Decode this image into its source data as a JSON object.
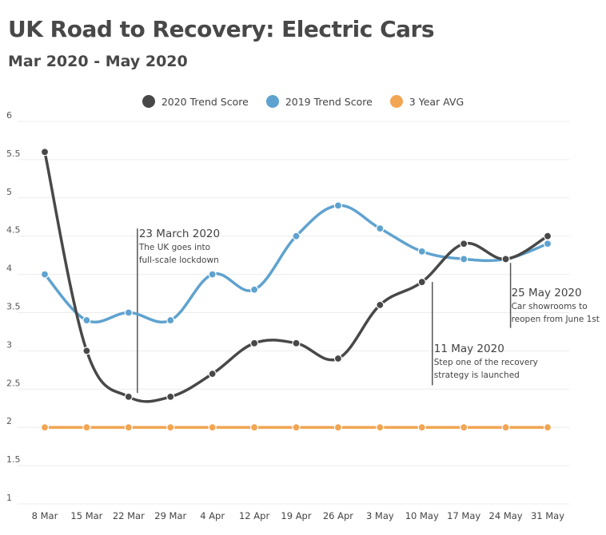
{
  "chart_data": {
    "type": "line",
    "title": "UK Road to Recovery: Electric Cars",
    "subtitle": "Mar 2020 - May 2020",
    "categories": [
      "8 Mar",
      "15 Mar",
      "22 Mar",
      "29 Mar",
      "4 Apr",
      "12 Apr",
      "19 Apr",
      "26 Apr",
      "3 May",
      "10 May",
      "17 May",
      "24 May",
      "31 May"
    ],
    "series": [
      {
        "name": "2020 Trend Score",
        "color": "#484848",
        "values": [
          5.6,
          3.0,
          2.4,
          2.4,
          2.7,
          3.1,
          3.1,
          2.9,
          3.6,
          3.9,
          4.4,
          4.2,
          4.5
        ]
      },
      {
        "name": "2019 Trend Score",
        "color": "#5fa2cf",
        "values": [
          4.0,
          3.4,
          3.5,
          3.4,
          4.0,
          3.8,
          4.5,
          4.9,
          4.6,
          4.3,
          4.2,
          4.2,
          4.4
        ]
      },
      {
        "name": "3 Year AVG",
        "color": "#f2a553",
        "values": [
          2,
          2,
          2,
          2,
          2,
          2,
          2,
          2,
          2,
          2,
          2,
          2,
          2
        ]
      }
    ],
    "yticks": [
      "1",
      "1.5",
      "2",
      "2.5",
      "3",
      "3.5",
      "4",
      "4.5",
      "5",
      "5.5",
      "6"
    ],
    "ylim": [
      1,
      6
    ],
    "grid": true,
    "legend_position": "top-center",
    "xlabel": "",
    "ylabel": "",
    "annotations": [
      {
        "category": "22 Mar",
        "y_from": 2.45,
        "y_to": 4.6,
        "title": "23 March 2020",
        "lines": [
          "The UK goes into",
          "full-scale lockdown"
        ]
      },
      {
        "category": "10 May",
        "y_from": 2.55,
        "y_to": 3.9,
        "title": "11 May 2020",
        "lines": [
          "Step one of the recovery",
          "strategy is launched"
        ]
      },
      {
        "category": "24 May",
        "y_from": 3.3,
        "y_to": 4.15,
        "title": "25 May 2020",
        "lines": [
          "Car showrooms to",
          "reopen from June 1st"
        ]
      }
    ]
  }
}
